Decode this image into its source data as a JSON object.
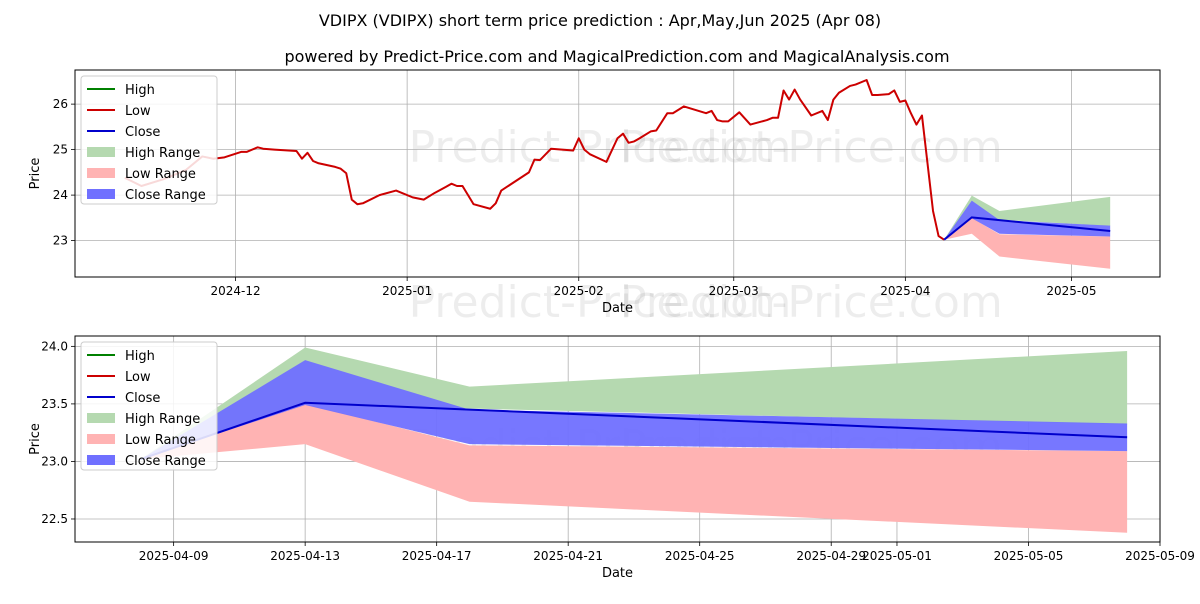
{
  "header": {
    "title": "VDIPX (VDIPX) short term price prediction : Apr,May,Jun 2025 (Apr 08)",
    "subtitle": "powered by Predict-Price.com and MagicalPrediction.com and MagicalAnalysis.com"
  },
  "watermark": "Predict-Price.com",
  "colors": {
    "high": "#008000",
    "low": "#cc0000",
    "close": "#0000cc",
    "high_range": "#b5d9b0",
    "low_range": "#ffb3b3",
    "close_range": "#7070ff"
  },
  "chart_data": [
    {
      "type": "line",
      "xlabel": "Date",
      "ylabel": "Price",
      "ylim": [
        22.2,
        26.75
      ],
      "xlim": [
        "2024-11-02",
        "2025-05-17"
      ],
      "yticks": [
        23,
        24,
        25,
        26
      ],
      "xticks": [
        "2024-12",
        "2025-01",
        "2025-02",
        "2025-03",
        "2025-04",
        "2025-05"
      ],
      "grid": true,
      "legend_position": "top-left",
      "legend": [
        "High",
        "Low",
        "Close",
        "High Range",
        "Low Range",
        "Close Range"
      ],
      "history": {
        "name": "Low",
        "x": [
          "2024-11-11",
          "2024-11-14",
          "2024-11-18",
          "2024-11-22",
          "2024-11-25",
          "2024-11-27",
          "2024-11-29",
          "2024-12-02",
          "2024-12-03",
          "2024-12-05",
          "2024-12-06",
          "2024-12-08",
          "2024-12-12",
          "2024-12-13",
          "2024-12-14",
          "2024-12-15",
          "2024-12-16",
          "2024-12-19",
          "2024-12-20",
          "2024-12-21",
          "2024-12-22",
          "2024-12-23",
          "2024-12-24",
          "2024-12-27",
          "2024-12-30",
          "2025-01-02",
          "2025-01-04",
          "2025-01-06",
          "2025-01-08",
          "2025-01-09",
          "2025-01-10",
          "2025-01-11",
          "2025-01-13",
          "2025-01-16",
          "2025-01-17",
          "2025-01-18",
          "2025-01-23",
          "2025-01-24",
          "2025-01-25",
          "2025-01-27",
          "2025-01-31",
          "2025-02-01",
          "2025-02-02",
          "2025-02-03",
          "2025-02-06",
          "2025-02-08",
          "2025-02-09",
          "2025-02-10",
          "2025-02-11",
          "2025-02-12",
          "2025-02-14",
          "2025-02-15",
          "2025-02-17",
          "2025-02-18",
          "2025-02-20",
          "2025-02-24",
          "2025-02-25",
          "2025-02-26",
          "2025-02-27",
          "2025-02-28",
          "2025-03-02",
          "2025-03-04",
          "2025-03-07",
          "2025-03-08",
          "2025-03-09",
          "2025-03-10",
          "2025-03-11",
          "2025-03-12",
          "2025-03-13",
          "2025-03-15",
          "2025-03-17",
          "2025-03-18",
          "2025-03-19",
          "2025-03-20",
          "2025-03-22",
          "2025-03-23",
          "2025-03-25",
          "2025-03-26",
          "2025-03-27",
          "2025-03-29",
          "2025-03-30",
          "2025-03-31",
          "2025-04-01",
          "2025-04-02",
          "2025-04-03",
          "2025-04-04",
          "2025-04-06",
          "2025-04-07",
          "2025-04-08"
        ],
        "values": [
          24.38,
          24.2,
          24.35,
          24.55,
          24.85,
          24.8,
          24.83,
          24.95,
          24.95,
          25.05,
          25.02,
          25.0,
          24.97,
          24.8,
          24.93,
          24.75,
          24.7,
          24.62,
          24.58,
          24.48,
          23.9,
          23.8,
          23.82,
          24.0,
          24.1,
          23.95,
          23.9,
          24.05,
          24.18,
          24.25,
          24.2,
          24.2,
          23.8,
          23.7,
          23.82,
          24.1,
          24.5,
          24.78,
          24.77,
          25.02,
          24.98,
          25.25,
          25.0,
          24.9,
          24.73,
          25.25,
          25.35,
          25.15,
          25.18,
          25.25,
          25.4,
          25.42,
          25.8,
          25.8,
          25.95,
          25.8,
          25.85,
          25.65,
          25.62,
          25.62,
          25.82,
          25.55,
          25.65,
          25.7,
          25.7,
          26.3,
          26.1,
          26.32,
          26.1,
          25.75,
          25.85,
          25.65,
          26.1,
          26.25,
          26.4,
          26.43,
          26.53,
          26.2,
          26.2,
          26.22,
          26.3,
          26.05,
          26.08,
          25.8,
          25.55,
          25.75,
          23.65,
          23.1,
          23.02
        ]
      },
      "prediction": {
        "x": [
          "2025-04-08",
          "2025-04-13",
          "2025-04-18",
          "2025-05-08"
        ],
        "close": [
          23.02,
          23.51,
          23.45,
          23.21
        ],
        "high_range_upper": [
          23.02,
          23.99,
          23.65,
          23.96
        ],
        "high_range_lower": [
          23.02,
          23.52,
          23.46,
          23.32
        ],
        "low_range_upper": [
          23.02,
          23.5,
          23.14,
          23.09
        ],
        "low_range_lower": [
          23.02,
          23.15,
          22.65,
          22.38
        ],
        "close_range_upper": [
          23.02,
          23.88,
          23.45,
          23.33
        ],
        "close_range_lower": [
          23.02,
          23.49,
          23.15,
          23.09
        ]
      }
    },
    {
      "type": "line",
      "xlabel": "Date",
      "ylabel": "Price",
      "ylim": [
        22.3,
        24.09
      ],
      "xlim": [
        "2025-04-06",
        "2025-05-09"
      ],
      "yticks": [
        22.5,
        23.0,
        23.5,
        24.0
      ],
      "ytick_labels": [
        "22.5",
        "23.0",
        "23.5",
        "24.0"
      ],
      "xticks": [
        "2025-04-09",
        "2025-04-13",
        "2025-04-17",
        "2025-04-21",
        "2025-04-25",
        "2025-04-29",
        "2025-05-01",
        "2025-05-05",
        "2025-05-09"
      ],
      "grid": true,
      "legend_position": "top-left",
      "legend": [
        "High",
        "Low",
        "Close",
        "High Range",
        "Low Range",
        "Close Range"
      ],
      "prediction": {
        "x": [
          "2025-04-08",
          "2025-04-13",
          "2025-04-18",
          "2025-05-08"
        ],
        "close": [
          23.02,
          23.51,
          23.45,
          23.21
        ],
        "high_range_upper": [
          23.02,
          23.99,
          23.65,
          23.96
        ],
        "high_range_lower": [
          23.02,
          23.52,
          23.46,
          23.32
        ],
        "low_range_upper": [
          23.02,
          23.5,
          23.14,
          23.09
        ],
        "low_range_lower": [
          23.02,
          23.15,
          22.65,
          22.38
        ],
        "close_range_upper": [
          23.02,
          23.88,
          23.45,
          23.33
        ],
        "close_range_lower": [
          23.02,
          23.49,
          23.15,
          23.09
        ]
      }
    }
  ]
}
